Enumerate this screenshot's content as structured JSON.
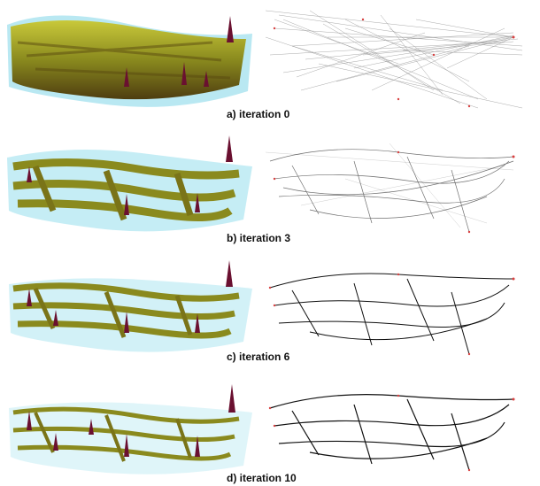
{
  "figure": {
    "panels": [
      {
        "id": "a",
        "caption": "a) iteration 0"
      },
      {
        "id": "b",
        "caption": "b) iteration 3"
      },
      {
        "id": "c",
        "caption": "c) iteration 6"
      },
      {
        "id": "d",
        "caption": "d) iteration 10"
      }
    ],
    "colors": {
      "surface_green": "#8a8a1e",
      "surface_olive": "#6b5a14",
      "halo_cyan": "#7fd6e8",
      "peak_maroon": "#6a1030",
      "edge_dark": "#111111",
      "node_red": "#d84040"
    }
  }
}
